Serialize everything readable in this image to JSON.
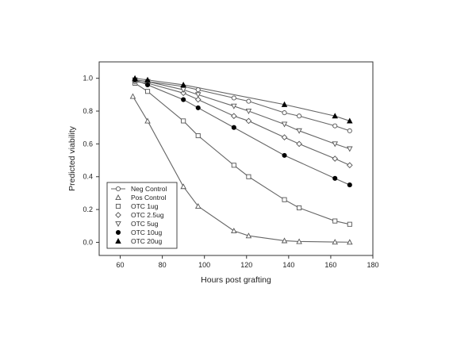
{
  "chart_data": {
    "type": "line",
    "title": "",
    "xlabel": "Hours post grafting",
    "ylabel": "Predicted viability",
    "xlim": [
      50,
      180
    ],
    "ylim": [
      -0.08,
      1.1
    ],
    "xticks": [
      60,
      80,
      100,
      120,
      140,
      160,
      180
    ],
    "yticks": [
      0.0,
      0.2,
      0.4,
      0.6,
      0.8,
      1.0
    ],
    "xtick_labels": [
      "60",
      "80",
      "100",
      "120",
      "140",
      "160",
      "180"
    ],
    "ytick_labels": [
      "0.0",
      "0.2",
      "0.4",
      "0.6",
      "0.8",
      "1.0"
    ],
    "grid": false,
    "legend_position": "bottom-left",
    "series": [
      {
        "name": "Neg Control",
        "marker": "circle-open",
        "x": [
          67,
          73,
          90,
          97,
          114,
          121,
          138,
          145,
          162,
          169
        ],
        "y": [
          0.99,
          0.98,
          0.95,
          0.93,
          0.88,
          0.86,
          0.79,
          0.77,
          0.71,
          0.68
        ]
      },
      {
        "name": "Pos Control",
        "marker": "triangle-open",
        "x": [
          66,
          73,
          90,
          97,
          114,
          121,
          138,
          145,
          162,
          169
        ],
        "y": [
          0.89,
          0.74,
          0.34,
          0.22,
          0.07,
          0.04,
          0.01,
          0.005,
          0.002,
          0.001
        ]
      },
      {
        "name": "OTC 1ug",
        "marker": "square-open",
        "x": [
          67,
          73,
          90,
          97,
          114,
          121,
          138,
          145,
          162,
          169
        ],
        "y": [
          0.97,
          0.92,
          0.74,
          0.65,
          0.47,
          0.4,
          0.26,
          0.21,
          0.13,
          0.11
        ]
      },
      {
        "name": "OTC 2.5ug",
        "marker": "diamond-open",
        "x": [
          67,
          73,
          90,
          97,
          114,
          121,
          138,
          145,
          162,
          169
        ],
        "y": [
          0.98,
          0.97,
          0.91,
          0.87,
          0.77,
          0.74,
          0.64,
          0.6,
          0.51,
          0.47
        ]
      },
      {
        "name": "OTC 5ug",
        "marker": "triangle-down-open",
        "x": [
          67,
          73,
          90,
          97,
          114,
          121,
          138,
          145,
          162,
          169
        ],
        "y": [
          0.99,
          0.98,
          0.93,
          0.9,
          0.83,
          0.8,
          0.72,
          0.68,
          0.6,
          0.57
        ]
      },
      {
        "name": "OTC 10ug",
        "marker": "circle-filled",
        "x": [
          67,
          73,
          90,
          97,
          114,
          138,
          162,
          169
        ],
        "y": [
          0.99,
          0.96,
          0.87,
          0.82,
          0.7,
          0.53,
          0.39,
          0.35
        ]
      },
      {
        "name": "OTC 20ug",
        "marker": "triangle-filled",
        "x": [
          67,
          73,
          90,
          138,
          162,
          169
        ],
        "y": [
          1.0,
          0.99,
          0.96,
          0.84,
          0.77,
          0.74
        ]
      }
    ]
  }
}
